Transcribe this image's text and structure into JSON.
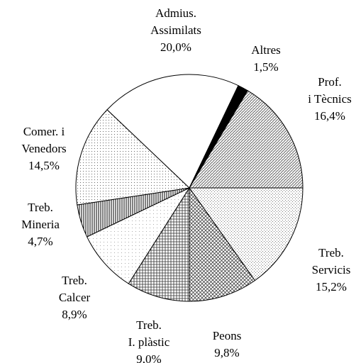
{
  "chart_data": {
    "type": "pie",
    "categories": [
      [
        "Treb.",
        "Servicis"
      ],
      [
        "Peons"
      ],
      [
        "Treb.",
        "I. plàstic"
      ],
      [
        "Treb.",
        "Calcer"
      ],
      [
        "Treb.",
        "Mineria"
      ],
      [
        "Comer. i",
        "Venedors"
      ],
      [
        "Admius.",
        "Assimilats"
      ],
      [
        "Altres"
      ],
      [
        "Prof.",
        "i Tècnics"
      ]
    ],
    "values": [
      15.2,
      9.8,
      9.0,
      8.9,
      4.7,
      14.5,
      20.0,
      1.5,
      16.4
    ],
    "value_labels": [
      "15,2%",
      "9,8%",
      "9,0%",
      "8,9%",
      "4,7%",
      "14,5%",
      "20,0%",
      "1,5%",
      "16,4%"
    ]
  }
}
